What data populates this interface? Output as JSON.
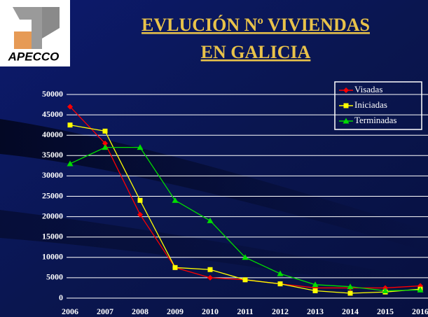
{
  "logo_text": "APECCO",
  "chart_data": {
    "type": "line",
    "title": [
      "EVLUCIÓN Nº VIVIENDAS",
      "EN GALICIA"
    ],
    "categories": [
      "2006",
      "2007",
      "2008",
      "2009",
      "2010",
      "2011",
      "2012",
      "2013",
      "2014",
      "2015",
      "2016"
    ],
    "series": [
      {
        "name": "Visadas",
        "color": "#ff0000",
        "marker": "diamond",
        "values": [
          47000,
          38000,
          20500,
          7500,
          5000,
          4500,
          3500,
          2500,
          2500,
          2500,
          3000
        ]
      },
      {
        "name": "Iniciadas",
        "color": "#ffff00",
        "marker": "square",
        "values": [
          42500,
          41000,
          24000,
          7500,
          7000,
          4500,
          3500,
          1800,
          1200,
          1500,
          2200
        ]
      },
      {
        "name": "Terminadas",
        "color": "#00dd00",
        "marker": "triangle",
        "values": [
          33000,
          37000,
          37000,
          24000,
          19000,
          10000,
          6000,
          3300,
          2800,
          1800,
          2000
        ]
      }
    ],
    "ylim": [
      0,
      50000
    ],
    "yticks": [
      0,
      5000,
      10000,
      15000,
      20000,
      25000,
      30000,
      35000,
      40000,
      45000,
      50000
    ],
    "grid": true,
    "legend": "top-right"
  }
}
